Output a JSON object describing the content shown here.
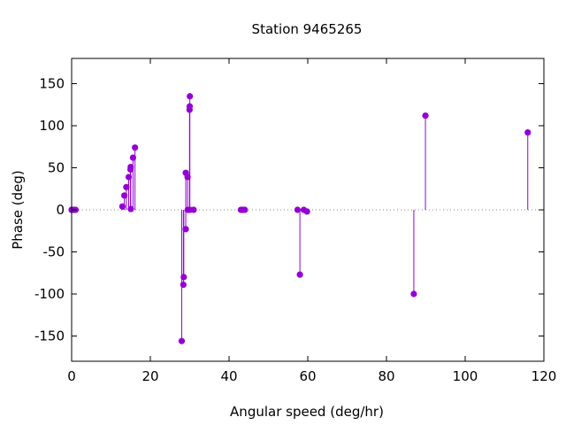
{
  "chart_data": {
    "type": "scatter",
    "style": "impulses-with-points",
    "title": "Station 9465265",
    "xlabel": "Angular speed (deg/hr)",
    "ylabel": "Phase (deg)",
    "xlim": [
      0,
      120
    ],
    "ylim": [
      -180,
      180
    ],
    "xticks": [
      0,
      20,
      40,
      60,
      80,
      100,
      120
    ],
    "yticks": [
      -150,
      -100,
      -50,
      0,
      50,
      100,
      150
    ],
    "zero_line": "dotted",
    "grid": false,
    "color": "#9400d3",
    "series": [
      {
        "x": [
          0.0,
          0.04,
          0.08,
          0.5,
          1.0,
          12.9,
          13.4,
          13.9,
          14.5,
          14.96,
          15.0,
          15.04,
          15.6,
          16.1,
          27.97,
          28.4,
          28.5,
          29.0,
          29.0,
          29.46,
          29.5,
          29.96,
          30.0,
          30.04,
          30.08,
          31.0,
          43.0,
          43.5,
          44.0,
          57.4,
          58.0,
          58.98,
          59.8,
          86.95,
          89.9,
          115.9
        ],
        "y": [
          0,
          0,
          0,
          0,
          0,
          4,
          17,
          27,
          39,
          48,
          51,
          1,
          62,
          74,
          -156,
          -89,
          -80,
          -23,
          44,
          39,
          0,
          119,
          123,
          135,
          0,
          0,
          0,
          0,
          0,
          0,
          -77,
          0,
          -2,
          -100,
          112,
          92
        ]
      }
    ]
  }
}
